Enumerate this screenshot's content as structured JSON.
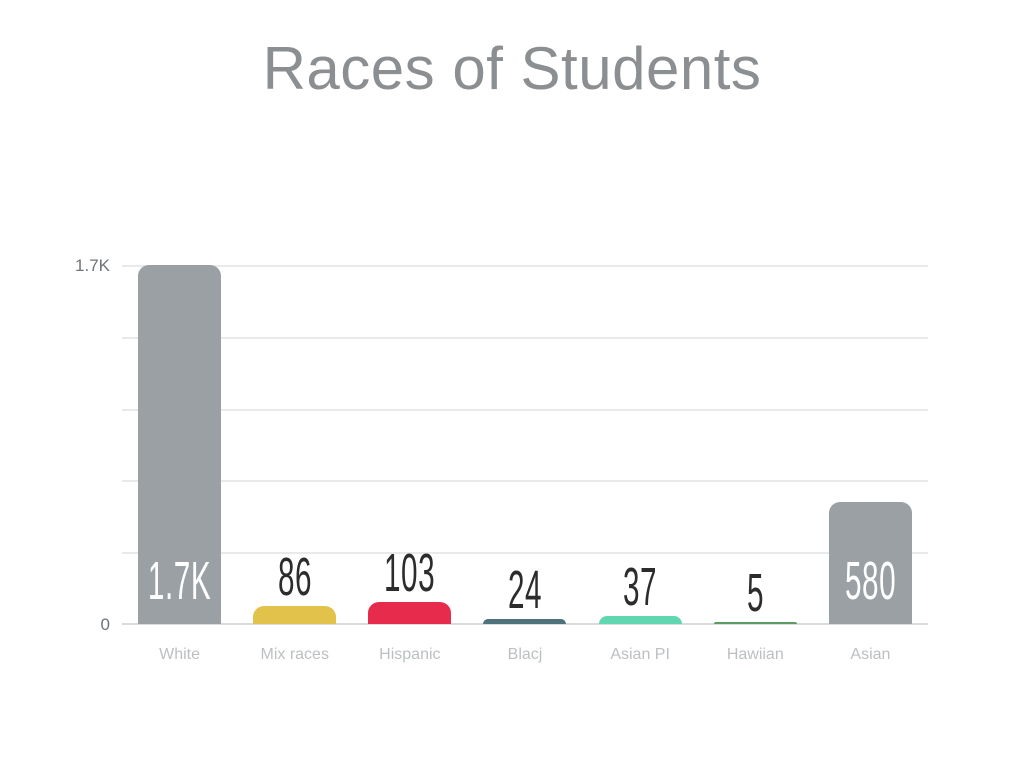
{
  "slide": {
    "title": "Races of Students"
  },
  "axis": {
    "y_top_label": "1.7K",
    "y_zero_label": "0"
  },
  "colors": {
    "title_text": "#8b8f91",
    "gridline": "#e8e9e9",
    "axis_line": "#d8dadb",
    "y_tick_text": "#6f7478",
    "category_text": "#bcc0c2",
    "value_text_dark": "#2c2c2c",
    "value_text_light": "#ffffff"
  },
  "chart_data": {
    "type": "bar",
    "title": "Races of Students",
    "categories": [
      "White",
      "Mix races",
      "Hispanic",
      "Blacj",
      "Asian PI",
      "Hawiian",
      "Asian"
    ],
    "values": [
      1700,
      86,
      103,
      24,
      37,
      5,
      580
    ],
    "value_labels": [
      "1.7K",
      "86",
      "103",
      "24",
      "37",
      "5",
      "580"
    ],
    "bar_colors": [
      "#9aa0a4",
      "#e3c24b",
      "#e62b4c",
      "#4d727b",
      "#60d7b1",
      "#5b9c64",
      "#9aa0a4"
    ],
    "label_inside": [
      true,
      false,
      false,
      false,
      false,
      false,
      true
    ],
    "xlabel": "",
    "ylabel": "",
    "ylim": [
      0,
      1700
    ],
    "ytick_labels": [
      "0",
      "1.7K"
    ],
    "grid_intervals": 5,
    "grid": "on",
    "legend": "none"
  }
}
